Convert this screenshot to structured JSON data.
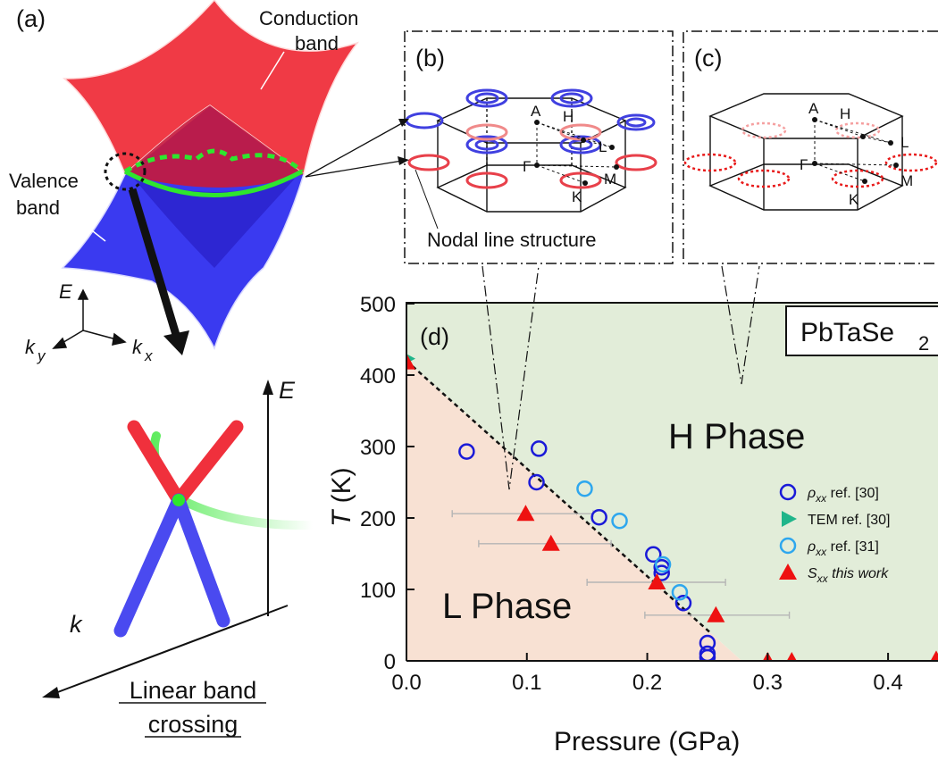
{
  "panels": {
    "a": {
      "label": "(a)",
      "conduction": [
        "Conduction",
        "band"
      ],
      "valence": [
        "Valence",
        "band"
      ],
      "axis_e": "E",
      "axis_ky": "k",
      "axis_ky_sub": "y",
      "axis_kx": "k",
      "axis_kx_sub": "x",
      "inset_e": "E",
      "inset_k": "k",
      "caption": [
        "Linear band",
        "crossing"
      ]
    },
    "b": {
      "label": "(b)",
      "caption": "Nodal line structure",
      "points": {
        "A": "A",
        "H": "H",
        "L": "L",
        "G": "Γ",
        "K": "K",
        "M": "M"
      }
    },
    "c": {
      "label": "(c)",
      "points": {
        "A": "A",
        "H": "H",
        "L": "L",
        "G": "Γ",
        "K": "K",
        "M": "M"
      }
    },
    "d": {
      "label": "(d)",
      "material": "PbTaSe",
      "material_sub": "2",
      "phase_h": "H Phase",
      "phase_l": "L Phase"
    }
  },
  "colors": {
    "valence": "#3a3af0",
    "conduction": "#f0303c",
    "nodal": "#2ee62e",
    "h_phase": "#e2edd9",
    "l_phase": "#f8e1d3",
    "rho30": "#1a1ad8",
    "rho31": "#2ea7ee",
    "tem": "#1fb58a",
    "sxx": "#ee1111"
  },
  "chart_data": {
    "type": "scatter",
    "xlabel": "Pressure (GPa)",
    "ylabel": "T (K)",
    "xlim": [
      0.0,
      0.44
    ],
    "ylim": [
      0,
      500
    ],
    "xticks": [
      "0.0",
      "0.1",
      "0.2",
      "0.3",
      "0.4"
    ],
    "xtick_values": [
      0.0,
      0.1,
      0.2,
      0.3,
      0.4
    ],
    "yticks": [
      "0",
      "100",
      "200",
      "300",
      "400",
      "500"
    ],
    "ytick_values": [
      0,
      100,
      200,
      300,
      400,
      500
    ],
    "phase_boundary": [
      [
        0.0,
        420
      ],
      [
        0.252,
        40
      ]
    ],
    "legend_position": "right",
    "series": [
      {
        "name": "ρxx ref. [30]",
        "label": "ρ",
        "label_sub": "xx",
        "suffix": " ref. [30]",
        "marker": "open-circle-dark",
        "points": [
          [
            0.05,
            293
          ],
          [
            0.11,
            297
          ],
          [
            0.108,
            250
          ],
          [
            0.16,
            201
          ],
          [
            0.205,
            149
          ],
          [
            0.212,
            131
          ],
          [
            0.212,
            123
          ],
          [
            0.23,
            81
          ],
          [
            0.25,
            25
          ],
          [
            0.25,
            10
          ],
          [
            0.25,
            5
          ]
        ]
      },
      {
        "name": "TEM ref. [30]",
        "label": "TEM",
        "label_sub": "",
        "suffix": " ref. [30]",
        "marker": "triangle-right",
        "points": [
          [
            0.0,
            423
          ]
        ]
      },
      {
        "name": "ρxx ref. [31]",
        "label": "ρ",
        "label_sub": "xx",
        "suffix": " ref. [31]",
        "marker": "open-circle-light",
        "points": [
          [
            0.148,
            241
          ],
          [
            0.177,
            196
          ],
          [
            0.213,
            135
          ],
          [
            0.227,
            96
          ]
        ]
      },
      {
        "name": "Sxx this work",
        "label": "S",
        "label_sub": "xx",
        "suffix": " this work",
        "marker": "triangle-up",
        "points": [
          [
            0.0,
            418
          ],
          [
            0.099,
            206
          ],
          [
            0.12,
            164
          ],
          [
            0.208,
            110
          ],
          [
            0.257,
            64
          ],
          [
            0.3,
            0
          ],
          [
            0.32,
            0
          ],
          [
            0.44,
            2
          ]
        ],
        "xerr": [
          null,
          [
            0.038,
            0.155
          ],
          [
            0.06,
            0.17
          ],
          [
            0.15,
            0.265
          ],
          [
            0.198,
            0.318
          ],
          null,
          null,
          null
        ]
      }
    ]
  }
}
